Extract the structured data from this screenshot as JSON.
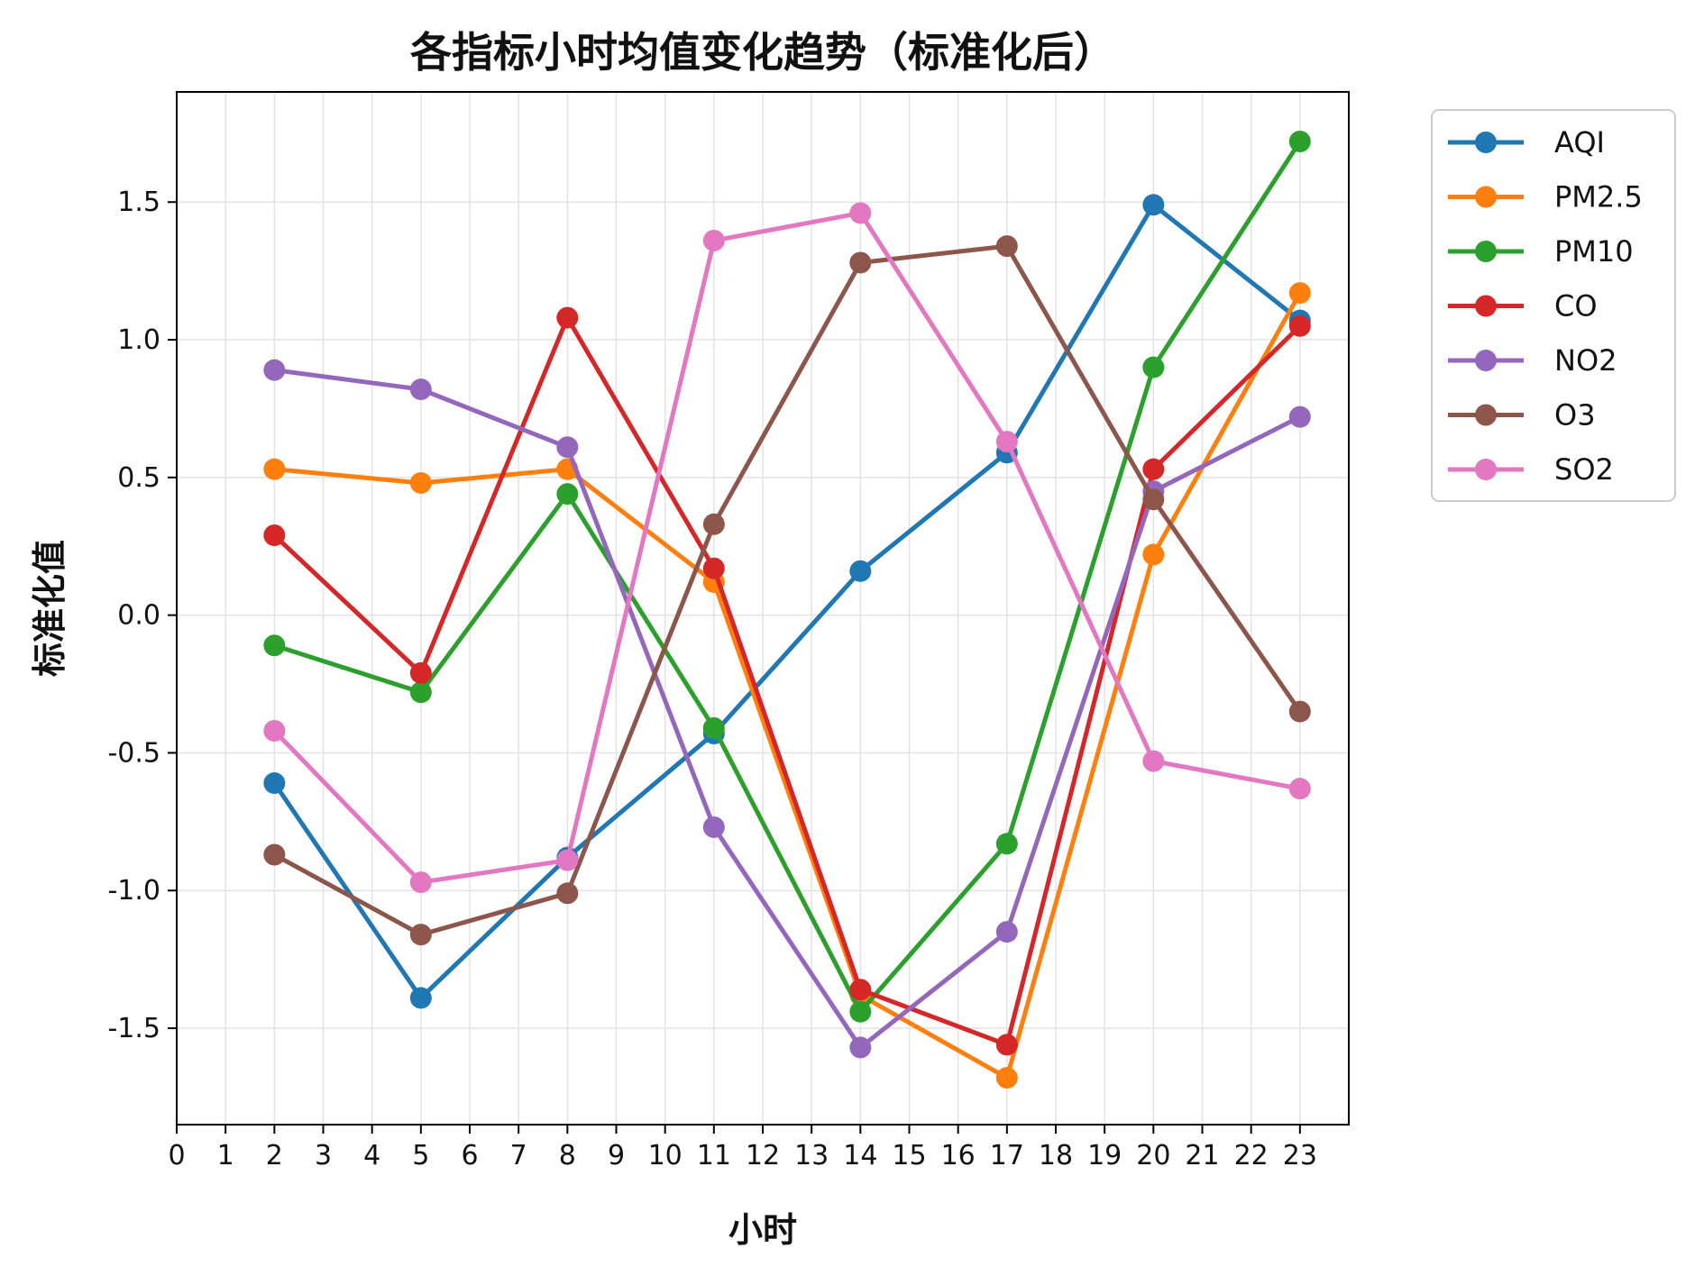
{
  "chart_data": {
    "type": "line",
    "title": "各指标小时均值变化趋势（标准化后）",
    "xlabel": "小时",
    "ylabel": "标准化值",
    "xlim": [
      0,
      24
    ],
    "ylim": [
      -1.85,
      1.9
    ],
    "x_ticks": [
      0,
      1,
      2,
      3,
      4,
      5,
      6,
      7,
      8,
      9,
      10,
      11,
      12,
      13,
      14,
      15,
      16,
      17,
      18,
      19,
      20,
      21,
      22,
      23
    ],
    "y_ticks": [
      -1.5,
      -1.0,
      -0.5,
      0.0,
      0.5,
      1.0,
      1.5
    ],
    "y_tick_labels": [
      "-1.5",
      "-1.0",
      "-0.5",
      "0.0",
      "0.5",
      "1.0",
      "1.5"
    ],
    "grid": true,
    "legend_position": "outside-right-top",
    "x": [
      2,
      5,
      8,
      11,
      14,
      17,
      20,
      23
    ],
    "series": [
      {
        "name": "AQI",
        "color": "#1f77b4",
        "values": [
          -0.61,
          -1.39,
          -0.88,
          -0.43,
          0.16,
          0.59,
          1.49,
          1.07
        ]
      },
      {
        "name": "PM2.5",
        "color": "#ff7f0e",
        "values": [
          0.53,
          0.48,
          0.53,
          0.12,
          -1.38,
          -1.68,
          0.22,
          1.17
        ]
      },
      {
        "name": "PM10",
        "color": "#2ca02c",
        "values": [
          -0.11,
          -0.28,
          0.44,
          -0.41,
          -1.44,
          -0.83,
          0.9,
          1.72
        ]
      },
      {
        "name": "CO",
        "color": "#d62728",
        "values": [
          0.29,
          -0.21,
          1.08,
          0.17,
          -1.36,
          -1.56,
          0.53,
          1.05
        ]
      },
      {
        "name": "NO2",
        "color": "#9467bd",
        "values": [
          0.89,
          0.82,
          0.61,
          -0.77,
          -1.57,
          -1.15,
          0.45,
          0.72
        ]
      },
      {
        "name": "O3",
        "color": "#8c564b",
        "values": [
          -0.87,
          -1.16,
          -1.01,
          0.33,
          1.28,
          1.34,
          0.42,
          -0.35
        ]
      },
      {
        "name": "SO2",
        "color": "#e377c2",
        "values": [
          -0.42,
          -0.97,
          -0.89,
          1.36,
          1.46,
          0.63,
          -0.53,
          -0.63
        ]
      }
    ]
  }
}
